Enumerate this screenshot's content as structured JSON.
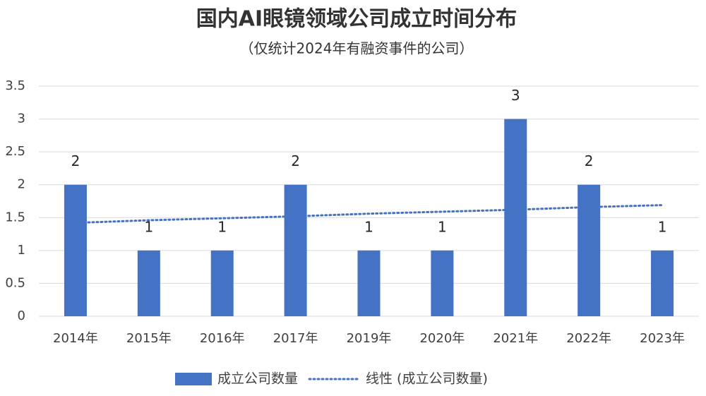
{
  "chart_data": {
    "type": "bar",
    "title": "国内AI眼镜领域公司成立时间分布",
    "subtitle": "（仅统计2024年有融资事件的公司）",
    "categories": [
      "2014年",
      "2015年",
      "2016年",
      "2017年",
      "2019年",
      "2020年",
      "2021年",
      "2022年",
      "2023年"
    ],
    "series": [
      {
        "name": "成立公司数量",
        "color": "#4472c4",
        "values": [
          2,
          1,
          1,
          2,
          1,
          1,
          3,
          2,
          1
        ]
      },
      {
        "name": "线性 (成立公司数量)",
        "color": "#4472c4",
        "style": "dotted",
        "values": [
          1.42,
          1.46,
          1.49,
          1.52,
          1.56,
          1.59,
          1.62,
          1.66,
          1.69
        ]
      }
    ],
    "ylim": [
      0,
      3.5
    ],
    "yticks": [
      0,
      0.5,
      1,
      1.5,
      2,
      2.5,
      3,
      3.5
    ],
    "grid": true,
    "legend": "bottom"
  }
}
